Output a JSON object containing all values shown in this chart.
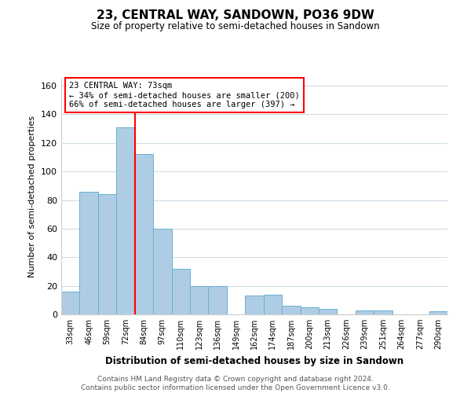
{
  "title": "23, CENTRAL WAY, SANDOWN, PO36 9DW",
  "subtitle": "Size of property relative to semi-detached houses in Sandown",
  "xlabel": "Distribution of semi-detached houses by size in Sandown",
  "ylabel": "Number of semi-detached properties",
  "footer_line1": "Contains HM Land Registry data © Crown copyright and database right 2024.",
  "footer_line2": "Contains public sector information licensed under the Open Government Licence v3.0.",
  "bar_labels": [
    "33sqm",
    "46sqm",
    "59sqm",
    "72sqm",
    "84sqm",
    "97sqm",
    "110sqm",
    "123sqm",
    "136sqm",
    "149sqm",
    "162sqm",
    "174sqm",
    "187sqm",
    "200sqm",
    "213sqm",
    "226sqm",
    "239sqm",
    "251sqm",
    "264sqm",
    "277sqm",
    "290sqm"
  ],
  "bar_values": [
    16,
    86,
    84,
    131,
    112,
    60,
    32,
    20,
    20,
    0,
    13,
    14,
    6,
    5,
    4,
    0,
    3,
    3,
    0,
    0,
    2
  ],
  "bar_color": "#aecde4",
  "bar_edge_color": "#6aafd4",
  "ylim": [
    0,
    165
  ],
  "yticks": [
    0,
    20,
    40,
    60,
    80,
    100,
    120,
    140,
    160
  ],
  "property_label": "23 CENTRAL WAY: 73sqm",
  "annotation_line1": "← 34% of semi-detached houses are smaller (200)",
  "annotation_line2": "66% of semi-detached houses are larger (397) →",
  "vline_x": 3.5,
  "background_color": "#ffffff",
  "grid_color": "#d0dce8"
}
